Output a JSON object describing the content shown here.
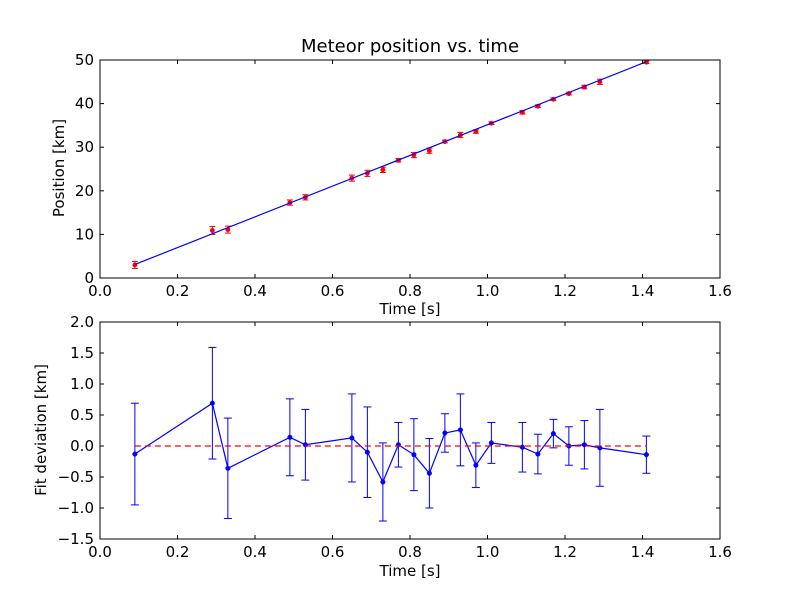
{
  "chart_data": [
    {
      "type": "scatter",
      "title": "Meteor position vs. time",
      "xlabel": "Time [s]",
      "ylabel": "Position [km]",
      "xlim": [
        0.0,
        1.6
      ],
      "ylim": [
        0,
        50
      ],
      "xticks": [
        "0.0",
        "0.2",
        "0.4",
        "0.6",
        "0.8",
        "1.0",
        "1.2",
        "1.4",
        "1.6"
      ],
      "yticks": [
        "0",
        "10",
        "20",
        "30",
        "40",
        "50"
      ],
      "grid": false,
      "series": [
        {
          "kind": "errorbar-points",
          "color": "#ff0000",
          "points": [
            {
              "x": 0.09,
              "y": 3.0,
              "err": 0.8
            },
            {
              "x": 0.29,
              "y": 10.9,
              "err": 0.9
            },
            {
              "x": 0.33,
              "y": 11.1,
              "err": 0.8
            },
            {
              "x": 0.49,
              "y": 17.3,
              "err": 0.6
            },
            {
              "x": 0.53,
              "y": 18.5,
              "err": 0.6
            },
            {
              "x": 0.65,
              "y": 22.9,
              "err": 0.7
            },
            {
              "x": 0.69,
              "y": 24.0,
              "err": 0.7
            },
            {
              "x": 0.73,
              "y": 24.8,
              "err": 0.6
            },
            {
              "x": 0.77,
              "y": 27.0,
              "err": 0.4
            },
            {
              "x": 0.81,
              "y": 28.2,
              "err": 0.6
            },
            {
              "x": 0.85,
              "y": 29.2,
              "err": 0.6
            },
            {
              "x": 0.89,
              "y": 31.3,
              "err": 0.3
            },
            {
              "x": 0.93,
              "y": 32.8,
              "err": 0.6
            },
            {
              "x": 0.97,
              "y": 33.6,
              "err": 0.4
            },
            {
              "x": 1.01,
              "y": 35.5,
              "err": 0.3
            },
            {
              "x": 1.09,
              "y": 38.0,
              "err": 0.4
            },
            {
              "x": 1.13,
              "y": 39.4,
              "err": 0.3
            },
            {
              "x": 1.17,
              "y": 41.0,
              "err": 0.3
            },
            {
              "x": 1.21,
              "y": 42.3,
              "err": 0.3
            },
            {
              "x": 1.25,
              "y": 43.8,
              "err": 0.4
            },
            {
              "x": 1.29,
              "y": 45.0,
              "err": 0.6
            },
            {
              "x": 1.41,
              "y": 49.5,
              "err": 0.3
            }
          ]
        },
        {
          "kind": "fit-line",
          "color": "#0000ff",
          "x": [
            0.09,
            1.41
          ],
          "y": [
            3.1,
            49.6
          ]
        }
      ]
    },
    {
      "type": "line",
      "title": "",
      "xlabel": "Time [s]",
      "ylabel": "Fit deviation [km]",
      "xlim": [
        0.0,
        1.6
      ],
      "ylim": [
        -1.5,
        2.0
      ],
      "xticks": [
        "0.0",
        "0.2",
        "0.4",
        "0.6",
        "0.8",
        "1.0",
        "1.2",
        "1.4",
        "1.6"
      ],
      "yticks": [
        "−1.5",
        "−1.0",
        "−0.5",
        "0.0",
        "0.5",
        "1.0",
        "1.5",
        "2.0"
      ],
      "grid": false,
      "series": [
        {
          "kind": "errorbar-line",
          "color": "#0000ff",
          "points": [
            {
              "x": 0.09,
              "y": -0.13,
              "err": 0.82
            },
            {
              "x": 0.29,
              "y": 0.69,
              "err": 0.9
            },
            {
              "x": 0.33,
              "y": -0.36,
              "err": 0.81
            },
            {
              "x": 0.49,
              "y": 0.14,
              "err": 0.62
            },
            {
              "x": 0.53,
              "y": 0.02,
              "err": 0.57
            },
            {
              "x": 0.65,
              "y": 0.13,
              "err": 0.71
            },
            {
              "x": 0.69,
              "y": -0.1,
              "err": 0.73
            },
            {
              "x": 0.73,
              "y": -0.58,
              "err": 0.63
            },
            {
              "x": 0.77,
              "y": 0.02,
              "err": 0.36
            },
            {
              "x": 0.81,
              "y": -0.14,
              "err": 0.58
            },
            {
              "x": 0.85,
              "y": -0.44,
              "err": 0.56
            },
            {
              "x": 0.89,
              "y": 0.21,
              "err": 0.31
            },
            {
              "x": 0.93,
              "y": 0.26,
              "err": 0.58
            },
            {
              "x": 0.97,
              "y": -0.31,
              "err": 0.36
            },
            {
              "x": 1.01,
              "y": 0.05,
              "err": 0.33
            },
            {
              "x": 1.09,
              "y": -0.02,
              "err": 0.4
            },
            {
              "x": 1.13,
              "y": -0.13,
              "err": 0.32
            },
            {
              "x": 1.17,
              "y": 0.2,
              "err": 0.23
            },
            {
              "x": 1.21,
              "y": 0.0,
              "err": 0.31
            },
            {
              "x": 1.25,
              "y": 0.02,
              "err": 0.39
            },
            {
              "x": 1.29,
              "y": -0.03,
              "err": 0.62
            },
            {
              "x": 1.41,
              "y": -0.14,
              "err": 0.3
            }
          ]
        },
        {
          "kind": "reference-line",
          "color": "#ff0000",
          "dashed": true,
          "x": [
            0.09,
            1.41
          ],
          "y": [
            0.0,
            0.0
          ]
        }
      ]
    }
  ]
}
